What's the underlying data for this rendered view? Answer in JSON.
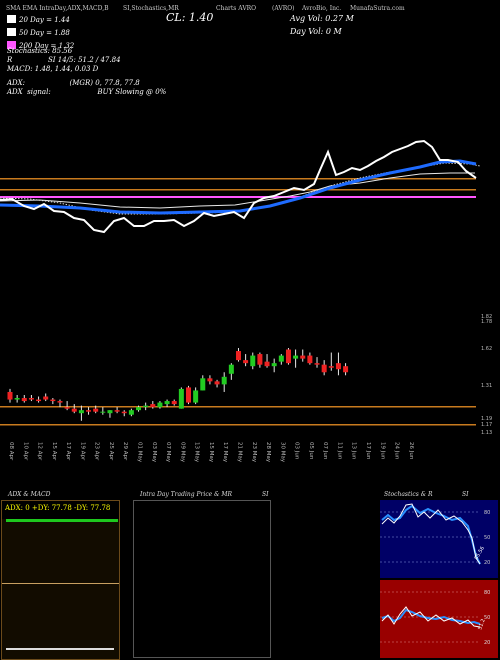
{
  "header": {
    "indicators_title": "SMA EMA IntraDay,ADX,MACD,B",
    "stoch_title": "SI,Stochastics,MR",
    "close_label": "CL: 1.40",
    "charts_label": "Charts AVRO",
    "symbol_label": "(AVRO)",
    "company_label": "AvroBio, Inc.",
    "munafa_label": "MunafaSutra.com",
    "avg_vol": "Avg Vol: 0.27 M",
    "day_vol": "Day Vol: 0   M"
  },
  "legend": [
    {
      "label": "20 Day = 1.44",
      "color": "#ffffff"
    },
    {
      "label": "50 Day = 1.88",
      "color": "#ffffff"
    },
    {
      "label": "200 Day = 1.32",
      "color": "#ff55ff"
    }
  ],
  "stats": {
    "stochastics": "Stochastics: 85.56",
    "si": "SI 14/5: 51.2 / 47.84",
    "si_prefix": "R",
    "macd": "MACD: 1.48, 1.44,  0.03 D",
    "adx_line": "ADX:                    (MGR) 0, 77.8, 77.8",
    "adx_signal": "ADX  signal:                     BUY Slowing @ 0%"
  },
  "price_labels": [
    "1.82",
    "1.78",
    "1.62",
    "1.31",
    "1.19",
    "1.17",
    "1.13"
  ],
  "date_labels": [
    "08 Apr",
    "10 Apr",
    "12 Apr",
    "15 Apr",
    "17 Apr",
    "19 Apr",
    "23 Apr",
    "25 Apr",
    "29 Apr",
    "01 May",
    "03 May",
    "07 May",
    "09 May",
    "13 May",
    "15 May",
    "17 May",
    "21 May",
    "23 May",
    "28 May",
    "30 May",
    "03 Jun",
    "05 Jun",
    "07 Jun",
    "11 Jun",
    "13 Jun",
    "17 Jun",
    "19 Jun",
    "24 Jun",
    "26 Jun"
  ],
  "panels": {
    "adx_title": "ADX  & MACD",
    "adx_values": "ADX: 0  +DY: 77.78  -DY: 77.78",
    "intraday_title": "Intra  Day Trading Price  & MR",
    "intraday_si": "SI",
    "stoch_panel_title": "Stochastics & R",
    "stoch_panel_si": "SI",
    "stoch_ticks": [
      "80",
      "50",
      "20"
    ],
    "stoch_value": "85.56",
    "si_ticks": [
      "80",
      "50",
      "20"
    ],
    "si_value": "51.2"
  },
  "colors": {
    "sma20": "#ffffff",
    "ema_blue": "#1e6bff",
    "sma200": "#ff55ff",
    "up": "#22cc22",
    "down": "#ee2222",
    "orange": "#c87a1e",
    "stoch_bg": "#000066",
    "si_bg": "#990000"
  },
  "candles": [
    {
      "o": 1.33,
      "h": 1.35,
      "l": 1.26,
      "c": 1.28
    },
    {
      "o": 1.28,
      "h": 1.31,
      "l": 1.26,
      "c": 1.29
    },
    {
      "o": 1.29,
      "h": 1.31,
      "l": 1.26,
      "c": 1.27
    },
    {
      "o": 1.29,
      "h": 1.31,
      "l": 1.27,
      "c": 1.28
    },
    {
      "o": 1.28,
      "h": 1.3,
      "l": 1.26,
      "c": 1.27
    },
    {
      "o": 1.3,
      "h": 1.32,
      "l": 1.27,
      "c": 1.28
    },
    {
      "o": 1.28,
      "h": 1.29,
      "l": 1.25,
      "c": 1.27
    },
    {
      "o": 1.27,
      "h": 1.28,
      "l": 1.23,
      "c": 1.26
    },
    {
      "o": 1.23,
      "h": 1.27,
      "l": 1.21,
      "c": 1.22
    },
    {
      "o": 1.22,
      "h": 1.25,
      "l": 1.19,
      "c": 1.2
    },
    {
      "o": 1.19,
      "h": 1.24,
      "l": 1.14,
      "c": 1.21
    },
    {
      "o": 1.21,
      "h": 1.23,
      "l": 1.18,
      "c": 1.2
    },
    {
      "o": 1.22,
      "h": 1.24,
      "l": 1.19,
      "c": 1.2
    },
    {
      "o": 1.2,
      "h": 1.23,
      "l": 1.18,
      "c": 1.2
    },
    {
      "o": 1.19,
      "h": 1.21,
      "l": 1.16,
      "c": 1.21
    },
    {
      "o": 1.21,
      "h": 1.23,
      "l": 1.19,
      "c": 1.2
    },
    {
      "o": 1.2,
      "h": 1.21,
      "l": 1.17,
      "c": 1.19
    },
    {
      "o": 1.18,
      "h": 1.22,
      "l": 1.17,
      "c": 1.21
    },
    {
      "o": 1.21,
      "h": 1.24,
      "l": 1.2,
      "c": 1.23
    },
    {
      "o": 1.23,
      "h": 1.26,
      "l": 1.21,
      "c": 1.24
    },
    {
      "o": 1.25,
      "h": 1.27,
      "l": 1.22,
      "c": 1.23
    },
    {
      "o": 1.23,
      "h": 1.27,
      "l": 1.22,
      "c": 1.26
    },
    {
      "o": 1.25,
      "h": 1.28,
      "l": 1.23,
      "c": 1.27
    },
    {
      "o": 1.27,
      "h": 1.28,
      "l": 1.24,
      "c": 1.25
    },
    {
      "o": 1.22,
      "h": 1.36,
      "l": 1.22,
      "c": 1.35
    },
    {
      "o": 1.36,
      "h": 1.37,
      "l": 1.25,
      "c": 1.26
    },
    {
      "o": 1.26,
      "h": 1.36,
      "l": 1.25,
      "c": 1.34
    },
    {
      "o": 1.34,
      "h": 1.44,
      "l": 1.34,
      "c": 1.42
    },
    {
      "o": 1.42,
      "h": 1.44,
      "l": 1.38,
      "c": 1.4
    },
    {
      "o": 1.4,
      "h": 1.41,
      "l": 1.36,
      "c": 1.38
    },
    {
      "o": 1.38,
      "h": 1.46,
      "l": 1.33,
      "c": 1.43
    },
    {
      "o": 1.45,
      "h": 1.52,
      "l": 1.41,
      "c": 1.51
    },
    {
      "o": 1.6,
      "h": 1.62,
      "l": 1.53,
      "c": 1.54
    },
    {
      "o": 1.54,
      "h": 1.58,
      "l": 1.5,
      "c": 1.52
    },
    {
      "o": 1.5,
      "h": 1.59,
      "l": 1.48,
      "c": 1.57
    },
    {
      "o": 1.58,
      "h": 1.59,
      "l": 1.49,
      "c": 1.51
    },
    {
      "o": 1.53,
      "h": 1.58,
      "l": 1.49,
      "c": 1.5
    },
    {
      "o": 1.5,
      "h": 1.55,
      "l": 1.46,
      "c": 1.52
    },
    {
      "o": 1.53,
      "h": 1.58,
      "l": 1.51,
      "c": 1.57
    },
    {
      "o": 1.61,
      "h": 1.62,
      "l": 1.51,
      "c": 1.52
    },
    {
      "o": 1.55,
      "h": 1.61,
      "l": 1.49,
      "c": 1.57
    },
    {
      "o": 1.57,
      "h": 1.61,
      "l": 1.53,
      "c": 1.55
    },
    {
      "o": 1.57,
      "h": 1.59,
      "l": 1.51,
      "c": 1.52
    },
    {
      "o": 1.52,
      "h": 1.56,
      "l": 1.49,
      "c": 1.51
    },
    {
      "o": 1.51,
      "h": 1.54,
      "l": 1.44,
      "c": 1.46
    },
    {
      "o": 1.5,
      "h": 1.59,
      "l": 1.47,
      "c": 1.49
    },
    {
      "o": 1.52,
      "h": 1.59,
      "l": 1.44,
      "c": 1.48
    },
    {
      "o": 1.5,
      "h": 1.52,
      "l": 1.44,
      "c": 1.46
    }
  ]
}
